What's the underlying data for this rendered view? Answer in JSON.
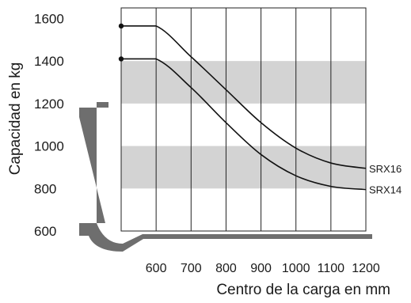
{
  "chart_data": {
    "type": "line",
    "title": "",
    "xlabel": "Centro de la carga en mm",
    "ylabel": "Capacidad en kg",
    "x_ticks": [
      600,
      700,
      800,
      900,
      1000,
      1100,
      1200
    ],
    "y_ticks": [
      600,
      800,
      1000,
      1200,
      1400,
      1600
    ],
    "xlim": [
      500,
      1200
    ],
    "ylim": [
      600,
      1650
    ],
    "grid": "vertical",
    "shaded_bands": [
      {
        "from": 800,
        "to": 1000
      },
      {
        "from": 1200,
        "to": 1400
      }
    ],
    "series": [
      {
        "name": "SRX16",
        "x": [
          500,
          600,
          700,
          800,
          900,
          1000,
          1100,
          1200
        ],
        "y": [
          1565,
          1565,
          1420,
          1265,
          1110,
          990,
          920,
          895
        ]
      },
      {
        "name": "SRX14",
        "x": [
          500,
          600,
          700,
          800,
          900,
          1000,
          1100,
          1200
        ],
        "y": [
          1410,
          1410,
          1275,
          1110,
          960,
          860,
          810,
          795
        ]
      }
    ],
    "colors": {
      "line": "#111111",
      "band": "#d3d3d3",
      "grid": "#222222",
      "fork": "#6e6e6e"
    }
  }
}
